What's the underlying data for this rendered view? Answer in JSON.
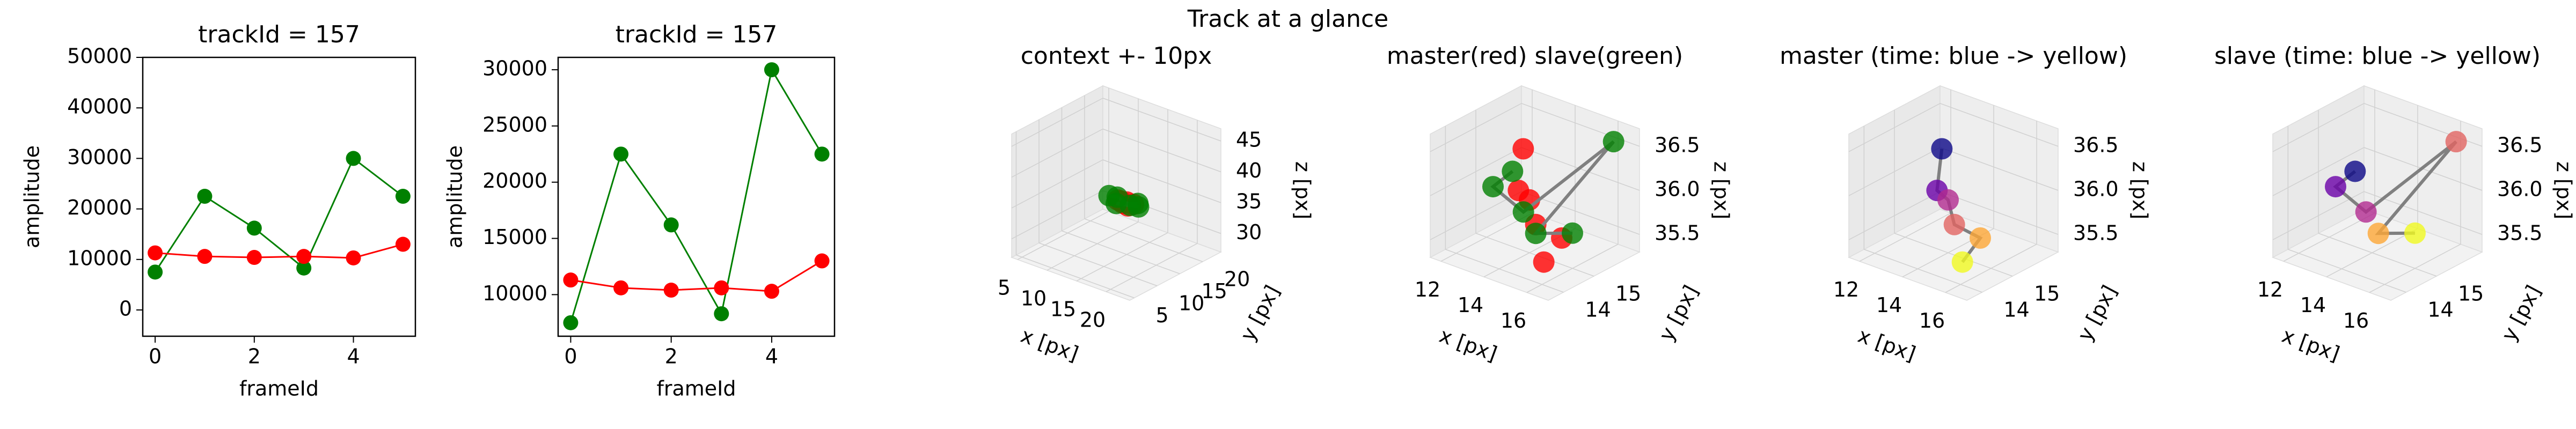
{
  "title": "Track at a glance",
  "chart_data": [
    {
      "type": "line",
      "title": "trackId = 157",
      "xlabel": "frameId",
      "ylabel": "amplitude",
      "x": [
        0,
        1,
        2,
        3,
        4,
        5
      ],
      "series": [
        {
          "color": "green",
          "values": [
            7500,
            22500,
            16200,
            8300,
            30000,
            22500
          ]
        },
        {
          "color": "red",
          "values": [
            11300,
            10600,
            10400,
            10600,
            10300,
            13000
          ]
        }
      ],
      "xlim": [
        -0.25,
        5.25
      ],
      "ylim": [
        -5200,
        50000
      ],
      "xticks": [
        0,
        2,
        4
      ],
      "yticks": [
        0,
        10000,
        20000,
        30000,
        40000,
        50000
      ]
    },
    {
      "type": "line",
      "title": "trackId = 157",
      "xlabel": "frameId",
      "ylabel": "amplitude",
      "x": [
        0,
        1,
        2,
        3,
        4,
        5
      ],
      "series": [
        {
          "color": "green",
          "values": [
            7500,
            22500,
            16200,
            8300,
            30000,
            22500
          ]
        },
        {
          "color": "red",
          "values": [
            11300,
            10600,
            10400,
            10600,
            10300,
            13000
          ]
        }
      ],
      "xlim": [
        -0.25,
        5.25
      ],
      "ylim": [
        6300,
        31100
      ],
      "xticks": [
        0,
        2,
        4
      ],
      "yticks": [
        10000,
        15000,
        20000,
        25000,
        30000
      ]
    },
    {
      "type": "scatter3d",
      "title": "context +- 10px",
      "xlabel": "x [px]",
      "ylabel": "y [px]",
      "zlabel": "z [px]",
      "xlim": [
        4,
        24
      ],
      "ylim": [
        4,
        24
      ],
      "zlim": [
        27,
        47
      ],
      "xticks": [
        5,
        10,
        15,
        20
      ],
      "yticks": [
        5,
        10,
        15,
        20
      ],
      "zticks": [
        30,
        35,
        40,
        45
      ],
      "series": [
        {
          "color": "red",
          "line_color": "gray",
          "x": [
            14,
            15,
            14.5,
            16,
            15.5,
            13.5
          ],
          "y": [
            15,
            15,
            14.8,
            15.2,
            14.6,
            15
          ],
          "z": [
            35.3,
            35.5,
            35.2,
            35.4,
            35.2,
            35.3
          ]
        },
        {
          "color": "green",
          "line_color": "gray",
          "x": [
            12,
            13,
            16,
            17,
            14,
            16.5
          ],
          "y": [
            15,
            15.5,
            14.5,
            15,
            14,
            15.5
          ],
          "z": [
            35.5,
            35.4,
            35.5,
            35.4,
            35.3,
            35.6
          ]
        }
      ]
    },
    {
      "type": "scatter3d",
      "title": "master(red) slave(green)",
      "xlabel": "x [px]",
      "ylabel": "y [px]",
      "zlabel": "z [px]",
      "xlim": [
        11.5,
        17
      ],
      "ylim": [
        13.5,
        16.5
      ],
      "zlim": [
        35.3,
        36.7
      ],
      "xticks": [
        12,
        14,
        16
      ],
      "yticks": [
        14,
        15
      ],
      "zticks": [
        35.5,
        {
          "value": 36,
          "label": "36.0"
        },
        36.5
      ],
      "series": [
        {
          "color": "red",
          "x": [
            13,
            13.2,
            14,
            15,
            15.5,
            15.8
          ],
          "y": [
            15.5,
            15.2,
            15,
            14.5,
            15,
            14.2
          ],
          "z": [
            36.3,
            35.9,
            35.9,
            35.8,
            35.6,
            35.5
          ]
        },
        {
          "color": "green",
          "line_color": "gray",
          "x": [
            12.5,
            12.3,
            14,
            16.5,
            15,
            16
          ],
          "y": [
            15.5,
            15,
            14.8,
            16,
            14.5,
            15
          ],
          "z": [
            36,
            35.9,
            35.8,
            36.6,
            35.7,
            35.7
          ]
        }
      ]
    },
    {
      "type": "scatter3d",
      "title": "master (time: blue -> yellow)",
      "xlabel": "x [px]",
      "ylabel": "y [px]",
      "zlabel": "z [px]",
      "xlim": [
        11.5,
        17
      ],
      "ylim": [
        13.5,
        16.5
      ],
      "zlim": [
        35.3,
        36.7
      ],
      "xticks": [
        12,
        14,
        16
      ],
      "yticks": [
        14,
        15
      ],
      "zticks": [
        35.5,
        {
          "value": 36,
          "label": "36.0"
        },
        36.5
      ],
      "series": [
        {
          "colors": [
            "#0d0887",
            "#6a00a8",
            "#b12a90",
            "#e16462",
            "#fca636",
            "#f0f921"
          ],
          "line_color": "gray",
          "x": [
            13,
            13.2,
            14,
            15,
            15.5,
            15.8
          ],
          "y": [
            15.5,
            15.2,
            15,
            14.5,
            15,
            14.2
          ],
          "z": [
            36.3,
            35.9,
            35.9,
            35.8,
            35.6,
            35.5
          ]
        }
      ]
    },
    {
      "type": "scatter3d",
      "title": "slave (time: blue -> yellow)",
      "xlabel": "x [px]",
      "ylabel": "y [px]",
      "zlabel": "z [px]",
      "xlim": [
        11.5,
        17
      ],
      "ylim": [
        13.5,
        16.5
      ],
      "zlim": [
        35.3,
        36.7
      ],
      "xticks": [
        12,
        14,
        16
      ],
      "yticks": [
        14,
        15
      ],
      "zticks": [
        35.5,
        {
          "value": 36,
          "label": "36.0"
        },
        36.5
      ],
      "series": [
        {
          "colors": [
            "#0d0887",
            "#6a00a8",
            "#b12a90",
            "#e16462",
            "#fca636",
            "#f0f921"
          ],
          "line_color": "gray",
          "x": [
            12.5,
            12.3,
            14,
            16.5,
            15,
            16
          ],
          "y": [
            15.5,
            15,
            14.8,
            16,
            14.5,
            15
          ],
          "z": [
            36,
            35.9,
            35.8,
            36.6,
            35.7,
            35.7
          ]
        }
      ]
    }
  ]
}
